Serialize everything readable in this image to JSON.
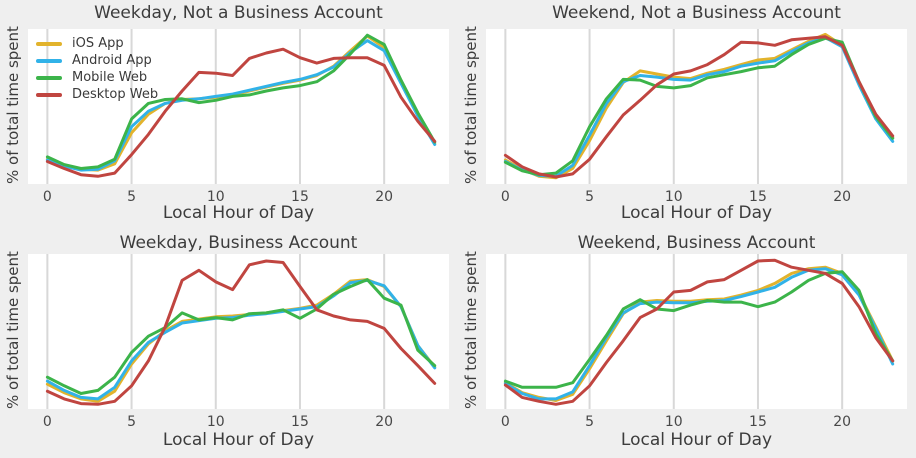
{
  "colors": {
    "page_background": "#efefef",
    "plot_background": "#ffffff",
    "grid": "#d8d8d8",
    "title_text": "#3c3c3c",
    "tick_text": "#484848",
    "ios_app": "#e2b32c",
    "android_app": "#31b2e8",
    "mobile_web": "#3cb44a",
    "desktop_web": "#c04540"
  },
  "chart_data": [
    {
      "type": "line",
      "title": "Weekday, Not a Business Account",
      "xlabel": "Local Hour of Day",
      "ylabel": "% of total time spent",
      "x": [
        0,
        1,
        2,
        3,
        4,
        5,
        6,
        7,
        8,
        9,
        10,
        11,
        12,
        13,
        14,
        15,
        16,
        17,
        18,
        19,
        20,
        21,
        22,
        23
      ],
      "x_ticks": [
        0,
        5,
        10,
        15,
        20
      ],
      "xlim": [
        -1.15,
        23.85
      ],
      "ylim": [
        0,
        100
      ],
      "y_tick_labels": "none (relative units)",
      "grid": "vertical-only",
      "legend_position": "upper-left",
      "series": [
        {
          "name": "iOS App",
          "color": "#e2b32c",
          "values": [
            16,
            12,
            9.5,
            9,
            13,
            33,
            45,
            52,
            54.5,
            55,
            56,
            57.5,
            60,
            62.5,
            65,
            67,
            70,
            76,
            86,
            95.5,
            88,
            66,
            45,
            26
          ]
        },
        {
          "name": "Android App",
          "color": "#31b2e8",
          "values": [
            15.5,
            11.5,
            9,
            9.5,
            15,
            37,
            47,
            52,
            54,
            55,
            56.5,
            58,
            60.5,
            63,
            65.5,
            67.5,
            70.5,
            75.5,
            85,
            92.5,
            86,
            65,
            44,
            25.5
          ]
        },
        {
          "name": "Mobile Web",
          "color": "#3cb44a",
          "values": [
            17.5,
            12.5,
            10,
            11,
            16,
            42,
            52,
            54.5,
            55,
            52.5,
            54,
            56.5,
            57.5,
            60,
            62,
            63.5,
            66,
            73,
            84,
            96,
            90,
            67,
            46,
            27
          ]
        },
        {
          "name": "Desktop Web",
          "color": "#c04540",
          "values": [
            14.5,
            10,
            6,
            5,
            7,
            19,
            32,
            47,
            60,
            72,
            71.5,
            70,
            81,
            84.5,
            87,
            81.5,
            78,
            81,
            81.5,
            81.5,
            76.5,
            56,
            40.5,
            27.5
          ]
        }
      ]
    },
    {
      "type": "line",
      "title": "Weekend, Not a Business Account",
      "xlabel": "Local Hour of Day",
      "ylabel": "% of total time spent",
      "x": [
        0,
        1,
        2,
        3,
        4,
        5,
        6,
        7,
        8,
        9,
        10,
        11,
        12,
        13,
        14,
        15,
        16,
        17,
        18,
        19,
        20,
        21,
        22,
        23
      ],
      "x_ticks": [
        0,
        5,
        10,
        15,
        20
      ],
      "xlim": [
        -1.15,
        23.85
      ],
      "ylim": [
        0,
        100
      ],
      "y_tick_labels": "none (relative units)",
      "grid": "vertical-only",
      "legend_position": "none",
      "series": [
        {
          "name": "iOS App",
          "color": "#e2b32c",
          "values": [
            15.5,
            9.5,
            5,
            4,
            10,
            28,
            49,
            65.5,
            73,
            71,
            69,
            68,
            71.5,
            74,
            77,
            80,
            81,
            86.5,
            92,
            96.5,
            89.5,
            65,
            43,
            30
          ]
        },
        {
          "name": "Android App",
          "color": "#31b2e8",
          "values": [
            14.5,
            9,
            5.5,
            5,
            12,
            31.5,
            52,
            66,
            70,
            69,
            67.5,
            67,
            70.5,
            72.5,
            76,
            78,
            79.5,
            85.5,
            91,
            94.5,
            88.5,
            64,
            42,
            27.5
          ]
        },
        {
          "name": "Mobile Web",
          "color": "#3cb44a",
          "values": [
            14,
            8.5,
            6,
            7,
            15,
            37,
            55,
            67.5,
            67,
            63,
            62,
            63.5,
            68.5,
            70.5,
            72.5,
            75,
            76,
            83.5,
            90,
            94,
            91.5,
            66,
            43.5,
            29.5
          ]
        },
        {
          "name": "Desktop Web",
          "color": "#c04540",
          "values": [
            18.5,
            11,
            6.5,
            4.5,
            6.5,
            16,
            30.5,
            44.5,
            54,
            64,
            71,
            73,
            77,
            83.5,
            91.5,
            91,
            89.5,
            93,
            94,
            95,
            89.5,
            66,
            45,
            31
          ]
        }
      ]
    },
    {
      "type": "line",
      "title": "Weekday, Business Account",
      "xlabel": "Local Hour of Day",
      "ylabel": "% of total time spent",
      "x": [
        0,
        1,
        2,
        3,
        4,
        5,
        6,
        7,
        8,
        9,
        10,
        11,
        12,
        13,
        14,
        15,
        16,
        17,
        18,
        19,
        20,
        21,
        22,
        23
      ],
      "x_ticks": [
        0,
        5,
        10,
        15,
        20
      ],
      "xlim": [
        -1.15,
        23.85
      ],
      "ylim": [
        0,
        100
      ],
      "y_tick_labels": "none (relative units)",
      "grid": "vertical-only",
      "legend_position": "none",
      "series": [
        {
          "name": "iOS App",
          "color": "#e2b32c",
          "values": [
            16,
            10.5,
            6.5,
            5,
            11.5,
            29,
            42,
            50.5,
            56.5,
            58,
            59.5,
            60,
            61,
            62,
            63.5,
            65,
            67,
            74,
            82.5,
            83.5,
            79,
            66,
            41,
            27
          ]
        },
        {
          "name": "Android App",
          "color": "#31b2e8",
          "values": [
            18,
            12,
            7.5,
            6.5,
            14,
            31,
            43,
            49.5,
            55.5,
            57,
            58.5,
            59,
            60.5,
            61.5,
            63,
            64.5,
            66,
            73,
            81.5,
            83,
            79.5,
            66,
            41,
            26.5
          ]
        },
        {
          "name": "Mobile Web",
          "color": "#3cb44a",
          "values": [
            20.5,
            15,
            10,
            12,
            20.5,
            36.5,
            47,
            52.5,
            62,
            57.5,
            59,
            57.5,
            61.5,
            62,
            64,
            58.5,
            64.5,
            74,
            79,
            83.5,
            71.5,
            67,
            38,
            28
          ]
        },
        {
          "name": "Desktop Web",
          "color": "#c04540",
          "values": [
            11.5,
            6.5,
            3.5,
            3,
            5,
            15,
            31,
            53,
            83,
            89.5,
            82,
            77,
            93,
            95.5,
            94.5,
            79,
            64,
            60,
            57.5,
            56.5,
            52,
            39,
            28,
            16.5
          ]
        }
      ]
    },
    {
      "type": "line",
      "title": "Weekend, Business Account",
      "xlabel": "Local Hour of Day",
      "ylabel": "% of total time spent",
      "x": [
        0,
        1,
        2,
        3,
        4,
        5,
        6,
        7,
        8,
        9,
        10,
        11,
        12,
        13,
        14,
        15,
        16,
        17,
        18,
        19,
        20,
        21,
        22,
        23
      ],
      "x_ticks": [
        0,
        5,
        10,
        15,
        20
      ],
      "xlim": [
        -1.15,
        23.85
      ],
      "ylim": [
        0,
        100
      ],
      "y_tick_labels": "none (relative units)",
      "grid": "vertical-only",
      "legend_position": "none",
      "series": [
        {
          "name": "iOS App",
          "color": "#e2b32c",
          "values": [
            17,
            10.5,
            7.5,
            5.5,
            9.5,
            26,
            44,
            61.5,
            69,
            70,
            69.5,
            69.5,
            70.5,
            71,
            73.5,
            76.5,
            81,
            87.5,
            90.5,
            91.5,
            87.5,
            74.5,
            53,
            31
          ]
        },
        {
          "name": "Android App",
          "color": "#31b2e8",
          "values": [
            16.5,
            10,
            6.5,
            6.5,
            11,
            28,
            46,
            62,
            68,
            69,
            68.5,
            68.5,
            69.5,
            70,
            72.5,
            75.5,
            78.5,
            85,
            89.5,
            90.5,
            86.5,
            73.5,
            52,
            29
          ]
        },
        {
          "name": "Mobile Web",
          "color": "#3cb44a",
          "values": [
            18,
            14,
            14,
            14,
            17,
            32,
            47.5,
            64.5,
            70.5,
            64.5,
            63.5,
            67,
            70,
            69,
            69,
            66,
            69,
            75.5,
            83,
            87.5,
            88.5,
            76.5,
            48.5,
            31
          ]
        },
        {
          "name": "Desktop Web",
          "color": "#c04540",
          "values": [
            15.5,
            7.5,
            5,
            3,
            5,
            15,
            30,
            44,
            59,
            64.5,
            75.5,
            76.5,
            82,
            83.5,
            89.5,
            95.5,
            96,
            91.5,
            89.5,
            87.5,
            81,
            66,
            46,
            31
          ]
        }
      ]
    }
  ]
}
